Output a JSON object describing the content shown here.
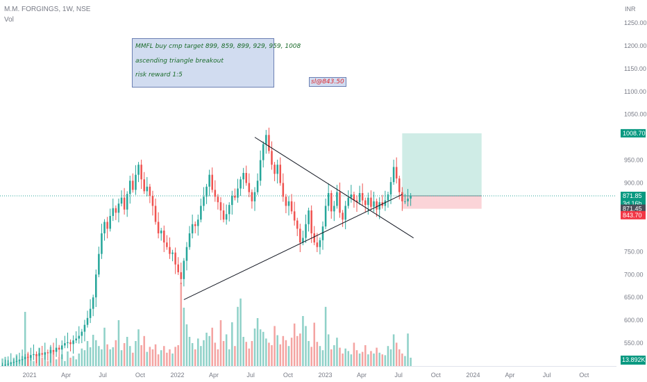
{
  "header": {
    "symbol_line": "M.M. FORGINGS, 1W, NSE",
    "volume_label": "Vol",
    "currency": "INR"
  },
  "notes": {
    "main_lines": [
      "MMFL buy cmp target 899, 859, 899, 929, 959, 1008",
      "ascending triangle breakout",
      "risk reward 1:5"
    ],
    "stop_loss": "sl@843.50"
  },
  "colors": {
    "up": "#26a69a",
    "down": "#ef5350",
    "vol_up": "#8fd1c8",
    "vol_down": "#f4a4a2",
    "target_zone": "#cfece6",
    "stop_zone": "#fbd4d8",
    "grid_text": "#787b86"
  },
  "price_labels": {
    "target": {
      "text": "1008.70",
      "color": "#089981"
    },
    "current": {
      "text": "871.85",
      "sub": "3d 16h",
      "color": "#089981"
    },
    "crosshair": {
      "text": "871.45",
      "color": "#4a4e59"
    },
    "stop": {
      "text": "843.70",
      "color": "#f23645"
    },
    "volume": {
      "text": "13.892K",
      "color": "#089981"
    }
  },
  "chart_data": {
    "type": "candlestick",
    "title": "M.M. FORGINGS, 1W, NSE",
    "y_ticks": [
      1250,
      1200,
      1150,
      1100,
      1050,
      950,
      900,
      750,
      700,
      650,
      600,
      550
    ],
    "ylim": [
      500,
      1300
    ],
    "x_ticks": [
      "2021",
      "Apr",
      "Jul",
      "Oct",
      "2022",
      "Apr",
      "Jul",
      "Oct",
      "2023",
      "Apr",
      "Jul",
      "Oct",
      "2024",
      "Apr",
      "Jul",
      "Oct"
    ],
    "x_tick_dates": [
      "2021-01-01",
      "2021-04-01",
      "2021-07-01",
      "2021-10-01",
      "2022-01-01",
      "2022-04-01",
      "2022-07-01",
      "2022-10-01",
      "2023-01-01",
      "2023-04-01",
      "2023-07-01",
      "2023-10-01",
      "2024-01-01",
      "2024-04-01",
      "2024-07-01",
      "2024-10-01"
    ],
    "xlim": [
      "2020-10-20",
      "2024-12-20"
    ],
    "candles": {
      "start_date": "2020-10-26",
      "interval": "1W",
      "closes": [
        501,
        503,
        505,
        507,
        509,
        511,
        513,
        515,
        520,
        518,
        524,
        526,
        522,
        528,
        525,
        530,
        528,
        535,
        531,
        540,
        536,
        545,
        550,
        552,
        548,
        556,
        560,
        566,
        575,
        590,
        605,
        625,
        650,
        700,
        745,
        790,
        815,
        800,
        828,
        845,
        835,
        855,
        868,
        842,
        876,
        905,
        885,
        918,
        940,
        908,
        882,
        892,
        872,
        850,
        815,
        790,
        796,
        770,
        760,
        745,
        748,
        722,
        705,
        690,
        730,
        760,
        790,
        810,
        806,
        820,
        850,
        870,
        892,
        918,
        885,
        870,
        858,
        840,
        820,
        832,
        852,
        872,
        868,
        888,
        908,
        922,
        900,
        880,
        860,
        880,
        905,
        950,
        985,
        1005,
        970,
        940,
        920,
        940,
        900,
        870,
        850,
        860,
        838,
        818,
        800,
        770,
        780,
        810,
        840,
        790,
        770,
        760,
        775,
        805,
        850,
        878,
        838,
        850,
        880,
        835,
        820,
        850,
        868,
        875,
        862,
        858,
        878,
        862,
        852,
        868,
        848,
        860,
        842,
        858,
        850,
        862,
        875,
        902,
        935,
        910,
        880,
        860,
        860,
        866,
        872
      ]
    },
    "volume": {
      "vol_ylim": [
        0,
        300
      ],
      "values": [
        18,
        22,
        14,
        10,
        20,
        28,
        16,
        24,
        130,
        30,
        20,
        12,
        28,
        44,
        20,
        30,
        12,
        46,
        34,
        16,
        22,
        28,
        12,
        35,
        20,
        24,
        16,
        30,
        42,
        38,
        60,
        45,
        75,
        62,
        48,
        40,
        92,
        52,
        40,
        45,
        62,
        110,
        38,
        55,
        70,
        48,
        32,
        60,
        88,
        50,
        72,
        34,
        46,
        40,
        52,
        28,
        38,
        48,
        32,
        40,
        30,
        46,
        50,
        200,
        140,
        100,
        70,
        55,
        40,
        66,
        48,
        62,
        80,
        72,
        92,
        56,
        40,
        110,
        60,
        76,
        40,
        105,
        48,
        142,
        162,
        70,
        58,
        42,
        60,
        90,
        115,
        88,
        82,
        66,
        56,
        50,
        96,
        74,
        52,
        72,
        62,
        48,
        68,
        102,
        72,
        78,
        120,
        96,
        60,
        46,
        104,
        58,
        48,
        38,
        142,
        76,
        40,
        50,
        68,
        44,
        30,
        42,
        36,
        28,
        56,
        38,
        30,
        34,
        50,
        28,
        36,
        30,
        44,
        32,
        28,
        26,
        48,
        40,
        76,
        56,
        40,
        30,
        24,
        78,
        20
      ]
    },
    "trendlines": [
      {
        "from": [
          "2022-01-17",
          645
        ],
        "to": [
          "2023-07-10",
          875
        ]
      },
      {
        "from": [
          "2022-07-11",
          1000
        ],
        "to": [
          "2023-08-07",
          780
        ]
      }
    ],
    "position": {
      "start_date": "2023-07-10",
      "end_date": "2024-01-22",
      "entry": 871.85,
      "target": 1008.7,
      "stop": 843.7
    }
  }
}
